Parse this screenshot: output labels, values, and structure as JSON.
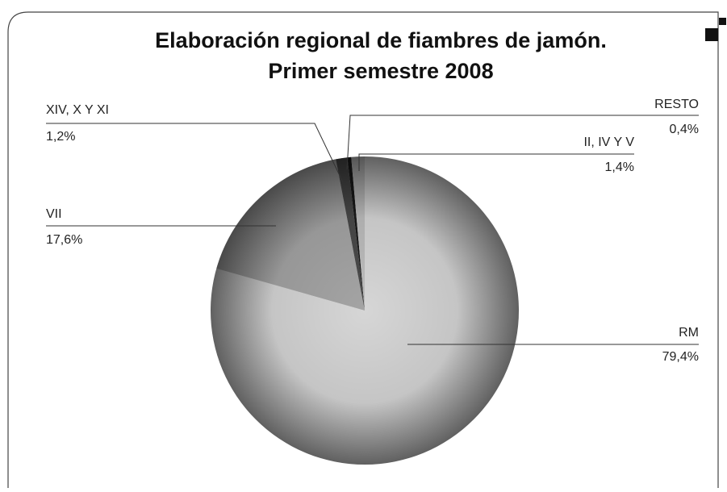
{
  "chart_data": {
    "type": "pie",
    "title": "Elaboración regional de fiambres de jamón.",
    "subtitle": "Primer semestre 2008",
    "categories": [
      "RM",
      "VII",
      "XIV, X Y XI",
      "RESTO",
      "II, IV Y V"
    ],
    "values": [
      79.4,
      17.6,
      1.2,
      0.4,
      1.4
    ],
    "value_labels": [
      "79,4%",
      "17,6%",
      "1,2%",
      "0,4%",
      "1,4%"
    ],
    "colors": [
      "#d6d6d6",
      "#a4a4a4",
      "#4a4a4a",
      "#1a1a1a",
      "#bdbdbd"
    ]
  }
}
